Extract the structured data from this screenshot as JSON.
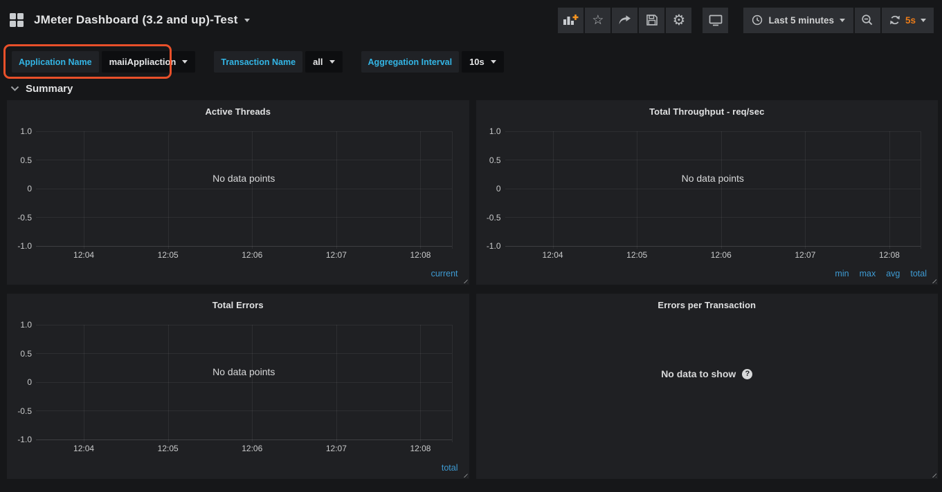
{
  "navbar": {
    "title": "JMeter Dashboard (3.2 and up)-Test"
  },
  "timepicker": {
    "range_label": "Last 5 minutes",
    "refresh_interval": "5s"
  },
  "variables": [
    {
      "label": "Application Name",
      "value": "maiiAppliaction",
      "highlighted": true
    },
    {
      "label": "Transaction Name",
      "value": "all",
      "highlighted": false
    },
    {
      "label": "Aggregation Interval",
      "value": "10s",
      "highlighted": false
    }
  ],
  "row": {
    "title": "Summary"
  },
  "icons": {
    "star": "☆",
    "gear": "⚙",
    "help": "?"
  },
  "colors": {
    "accent_orange": "#eb7b18",
    "highlight_border": "#e8502a",
    "legend_blue": "#3e9bd3",
    "variable_label_cyan": "#33b5e5",
    "panel_bg": "#1f2023",
    "body_bg": "#161719"
  },
  "chart_data": [
    {
      "type": "line",
      "title": "Active Threads",
      "no_data_message": "No data points",
      "x_ticks": [
        "12:04",
        "12:05",
        "12:06",
        "12:07",
        "12:08"
      ],
      "y_ticks": [
        "1.0",
        "0.5",
        "0",
        "-0.5",
        "-1.0"
      ],
      "ylim": [
        -1.0,
        1.0
      ],
      "series": [],
      "legend": [
        "current"
      ],
      "legend_position": "bottom-right",
      "grid": true
    },
    {
      "type": "line",
      "title": "Total Throughput - req/sec",
      "no_data_message": "No data points",
      "x_ticks": [
        "12:04",
        "12:05",
        "12:06",
        "12:07",
        "12:08"
      ],
      "y_ticks": [
        "1.0",
        "0.5",
        "0",
        "-0.5",
        "-1.0"
      ],
      "ylim": [
        -1.0,
        1.0
      ],
      "series": [],
      "legend": [
        "min",
        "max",
        "avg",
        "total"
      ],
      "legend_position": "bottom-right",
      "grid": true
    },
    {
      "type": "line",
      "title": "Total Errors",
      "no_data_message": "No data points",
      "x_ticks": [
        "12:04",
        "12:05",
        "12:06",
        "12:07",
        "12:08"
      ],
      "y_ticks": [
        "1.0",
        "0.5",
        "0",
        "-0.5",
        "-1.0"
      ],
      "ylim": [
        -1.0,
        1.0
      ],
      "series": [],
      "legend": [
        "total"
      ],
      "legend_position": "bottom-right",
      "grid": true
    },
    {
      "type": "table",
      "title": "Errors per Transaction",
      "no_data_message": "No data to show",
      "series": []
    }
  ]
}
